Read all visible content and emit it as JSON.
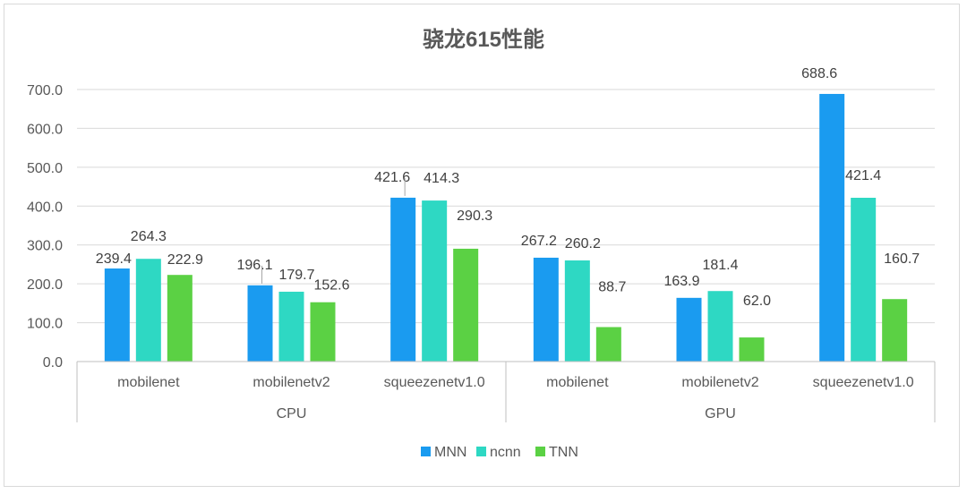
{
  "chart_data": {
    "type": "bar",
    "title": "骁龙615性能",
    "groups": [
      "CPU",
      "GPU"
    ],
    "categories": [
      "mobilenet",
      "mobilenetv2",
      "squeezenetv1.0",
      "mobilenet",
      "mobilenetv2",
      "squeezenetv1.0"
    ],
    "series": [
      {
        "name": "MNN",
        "color": "#1a9bf0",
        "values": [
          239.4,
          196.1,
          421.6,
          267.2,
          163.9,
          688.6
        ]
      },
      {
        "name": "ncnn",
        "color": "#2ed8c3",
        "values": [
          264.3,
          179.7,
          414.3,
          260.2,
          181.4,
          421.4
        ]
      },
      {
        "name": "TNN",
        "color": "#5bd144",
        "values": [
          222.9,
          152.6,
          290.3,
          88.7,
          62.0,
          160.7
        ]
      }
    ],
    "ylim": [
      0,
      700
    ],
    "yticks": [
      0,
      100,
      200,
      300,
      400,
      500,
      600,
      700
    ],
    "grid": true,
    "legend": "bottom"
  }
}
